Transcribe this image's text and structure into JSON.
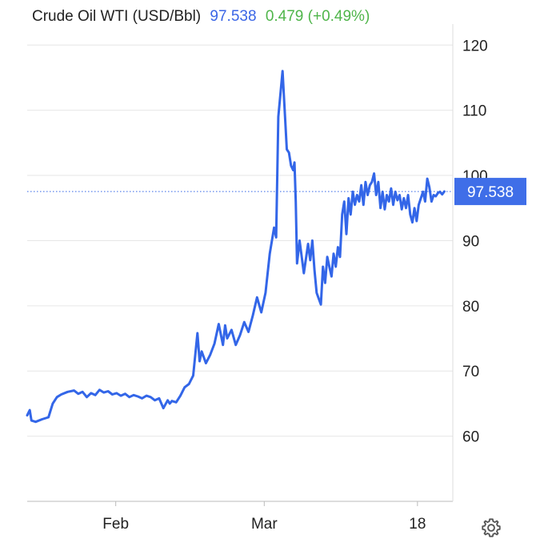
{
  "header": {
    "title": "Crude Oil WTI (USD/Bbl)",
    "price": "97.538",
    "change": "0.479 (+0.49%)"
  },
  "colors": {
    "line": "#3366e8",
    "price": "#3b66e6",
    "change": "#4fb54a",
    "grid": "#e6e6e6",
    "badge": "#3f6ee8"
  },
  "chart_data": {
    "type": "line",
    "title": "Crude Oil WTI (USD/Bbl)",
    "xlabel": "",
    "ylabel": "",
    "ylim": [
      50,
      122
    ],
    "y_ticks": [
      60,
      70,
      80,
      90,
      100,
      110,
      120
    ],
    "x_ticks": [
      {
        "label": "Feb",
        "x": 0.208
      },
      {
        "label": "Mar",
        "x": 0.557
      },
      {
        "label": "18",
        "x": 0.917
      }
    ],
    "last_value": 97.538,
    "last_label": "97.538",
    "grid": "horizontal",
    "series": [
      {
        "name": "",
        "x": [
          0.0,
          0.006,
          0.01,
          0.02,
          0.035,
          0.05,
          0.06,
          0.07,
          0.08,
          0.095,
          0.11,
          0.12,
          0.13,
          0.14,
          0.15,
          0.16,
          0.17,
          0.18,
          0.19,
          0.2,
          0.21,
          0.22,
          0.23,
          0.24,
          0.25,
          0.26,
          0.27,
          0.28,
          0.29,
          0.3,
          0.31,
          0.32,
          0.33,
          0.335,
          0.34,
          0.35,
          0.36,
          0.37,
          0.38,
          0.39,
          0.4,
          0.405,
          0.41,
          0.42,
          0.43,
          0.44,
          0.45,
          0.46,
          0.465,
          0.47,
          0.48,
          0.49,
          0.5,
          0.51,
          0.52,
          0.53,
          0.54,
          0.55,
          0.56,
          0.57,
          0.58,
          0.585,
          0.59,
          0.6,
          0.61,
          0.615,
          0.62,
          0.625,
          0.628,
          0.631,
          0.634,
          0.64,
          0.65,
          0.66,
          0.665,
          0.67,
          0.675,
          0.68,
          0.69,
          0.695,
          0.7,
          0.705,
          0.71,
          0.715,
          0.72,
          0.725,
          0.73,
          0.735,
          0.74,
          0.745,
          0.75,
          0.755,
          0.76,
          0.765,
          0.77,
          0.775,
          0.78,
          0.785,
          0.79,
          0.795,
          0.8,
          0.805,
          0.81,
          0.815,
          0.82,
          0.825,
          0.83,
          0.835,
          0.84,
          0.845,
          0.85,
          0.855,
          0.86,
          0.865,
          0.87,
          0.875,
          0.88,
          0.885,
          0.89,
          0.895,
          0.9,
          0.905,
          0.91,
          0.915,
          0.92,
          0.925,
          0.93,
          0.935,
          0.94,
          0.945,
          0.95,
          0.955,
          0.96,
          0.965,
          0.97,
          0.975,
          0.98
        ],
        "values": [
          63.2,
          64.0,
          62.4,
          62.2,
          62.6,
          62.9,
          65.0,
          66.0,
          66.4,
          66.8,
          67.0,
          66.5,
          66.8,
          66.0,
          66.6,
          66.3,
          67.1,
          66.7,
          66.9,
          66.4,
          66.6,
          66.2,
          66.5,
          66.0,
          66.3,
          66.1,
          65.8,
          66.2,
          66.0,
          65.5,
          65.8,
          64.3,
          65.5,
          65.0,
          65.4,
          65.2,
          66.2,
          67.5,
          68.0,
          69.3,
          75.8,
          71.5,
          73.0,
          71.2,
          72.5,
          74.2,
          77.2,
          74.0,
          77.0,
          75.0,
          76.3,
          74.0,
          75.5,
          77.5,
          76.0,
          78.5,
          81.3,
          79.0,
          82.0,
          88.0,
          92.0,
          90.5,
          109.0,
          116.0,
          104.0,
          103.5,
          101.5,
          100.8,
          102.0,
          96.0,
          86.5,
          90.0,
          85.0,
          89.5,
          87.0,
          90.0,
          85.5,
          82.0,
          80.2,
          86.0,
          83.5,
          87.5,
          86.0,
          84.5,
          88.0,
          86.0,
          89.0,
          87.5,
          94.0,
          96.0,
          91.0,
          96.5,
          94.0,
          97.5,
          95.5,
          97.0,
          96.0,
          98.5,
          95.5,
          99.0,
          97.0,
          98.5,
          99.0,
          100.3,
          97.0,
          99.0,
          95.0,
          97.5,
          94.8,
          97.0,
          96.0,
          98.0,
          95.5,
          97.5,
          96.2,
          97.0,
          94.8,
          96.5,
          95.0,
          97.0,
          94.0,
          92.8,
          95.0,
          93.0,
          95.5,
          96.5,
          97.5,
          96.0,
          99.5,
          98.2,
          96.0,
          97.0,
          96.8,
          97.3,
          97.5,
          97.1,
          97.538
        ]
      }
    ]
  },
  "icons": {
    "settings": "gear-icon"
  }
}
